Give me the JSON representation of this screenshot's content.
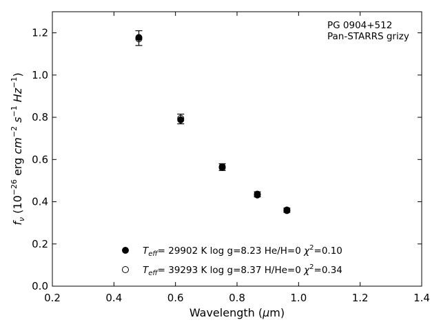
{
  "chart_data": {
    "type": "scatter",
    "title": "",
    "annotation_lines": [
      "PG 0904+512",
      "Pan-STARRS grizy"
    ],
    "xlabel": {
      "main": "Wavelength (",
      "unit": "μ",
      "tail": "m)"
    },
    "ylabel": {
      "f": "f",
      "nu": "ν",
      "units_open": " (10",
      "exp1": "−26",
      "erg": " erg ",
      "cm": "cm",
      "exp2": "−2",
      "s": " s",
      "exp3": "−1",
      "hz": " Hz",
      "exp4": "−1",
      "close": ")"
    },
    "xlim": [
      0.2,
      1.4
    ],
    "ylim": [
      0.0,
      1.3
    ],
    "xticks": [
      0.2,
      0.4,
      0.6,
      0.8,
      1.0,
      1.2,
      1.4
    ],
    "xtick_labels": [
      "0.2",
      "0.4",
      "0.6",
      "0.8",
      "1.0",
      "1.2",
      "1.4"
    ],
    "yticks": [
      0.0,
      0.2,
      0.4,
      0.6,
      0.8,
      1.0,
      1.2
    ],
    "ytick_labels": [
      "0.0",
      "0.2",
      "0.4",
      "0.6",
      "0.8",
      "1.0",
      "1.2"
    ],
    "observed": [
      {
        "x": 0.481,
        "y": 1.175,
        "err": 0.035
      },
      {
        "x": 0.617,
        "y": 0.792,
        "err": 0.023
      },
      {
        "x": 0.752,
        "y": 0.564,
        "err": 0.016
      },
      {
        "x": 0.866,
        "y": 0.435,
        "err": 0.012
      },
      {
        "x": 0.962,
        "y": 0.36,
        "err": 0.01
      }
    ],
    "model_he_h0": [
      {
        "x": 0.481,
        "y": 1.178
      },
      {
        "x": 0.617,
        "y": 0.788
      },
      {
        "x": 0.752,
        "y": 0.566
      },
      {
        "x": 0.866,
        "y": 0.432
      },
      {
        "x": 0.962,
        "y": 0.358
      }
    ],
    "model_h_he0": [
      {
        "x": 0.481,
        "y": 1.172
      },
      {
        "x": 0.617,
        "y": 0.795
      },
      {
        "x": 0.752,
        "y": 0.562
      },
      {
        "x": 0.866,
        "y": 0.436
      },
      {
        "x": 0.962,
        "y": 0.361
      }
    ],
    "legend": [
      {
        "marker": "filled",
        "teff": "29902",
        "logg": "8.23",
        "comp": "He/H=0",
        "chi2": "0.10"
      },
      {
        "marker": "open",
        "teff": "39293",
        "logg": "8.37",
        "comp": "H/He=0",
        "chi2": "0.34"
      }
    ],
    "legend_strings": {
      "T": "T",
      "eff": "eff",
      "k_unit": " K",
      "logg": "log g=",
      "chi": "χ",
      "sq": "2",
      "eq": "="
    },
    "grid": false,
    "legend_position": "lower-center"
  }
}
